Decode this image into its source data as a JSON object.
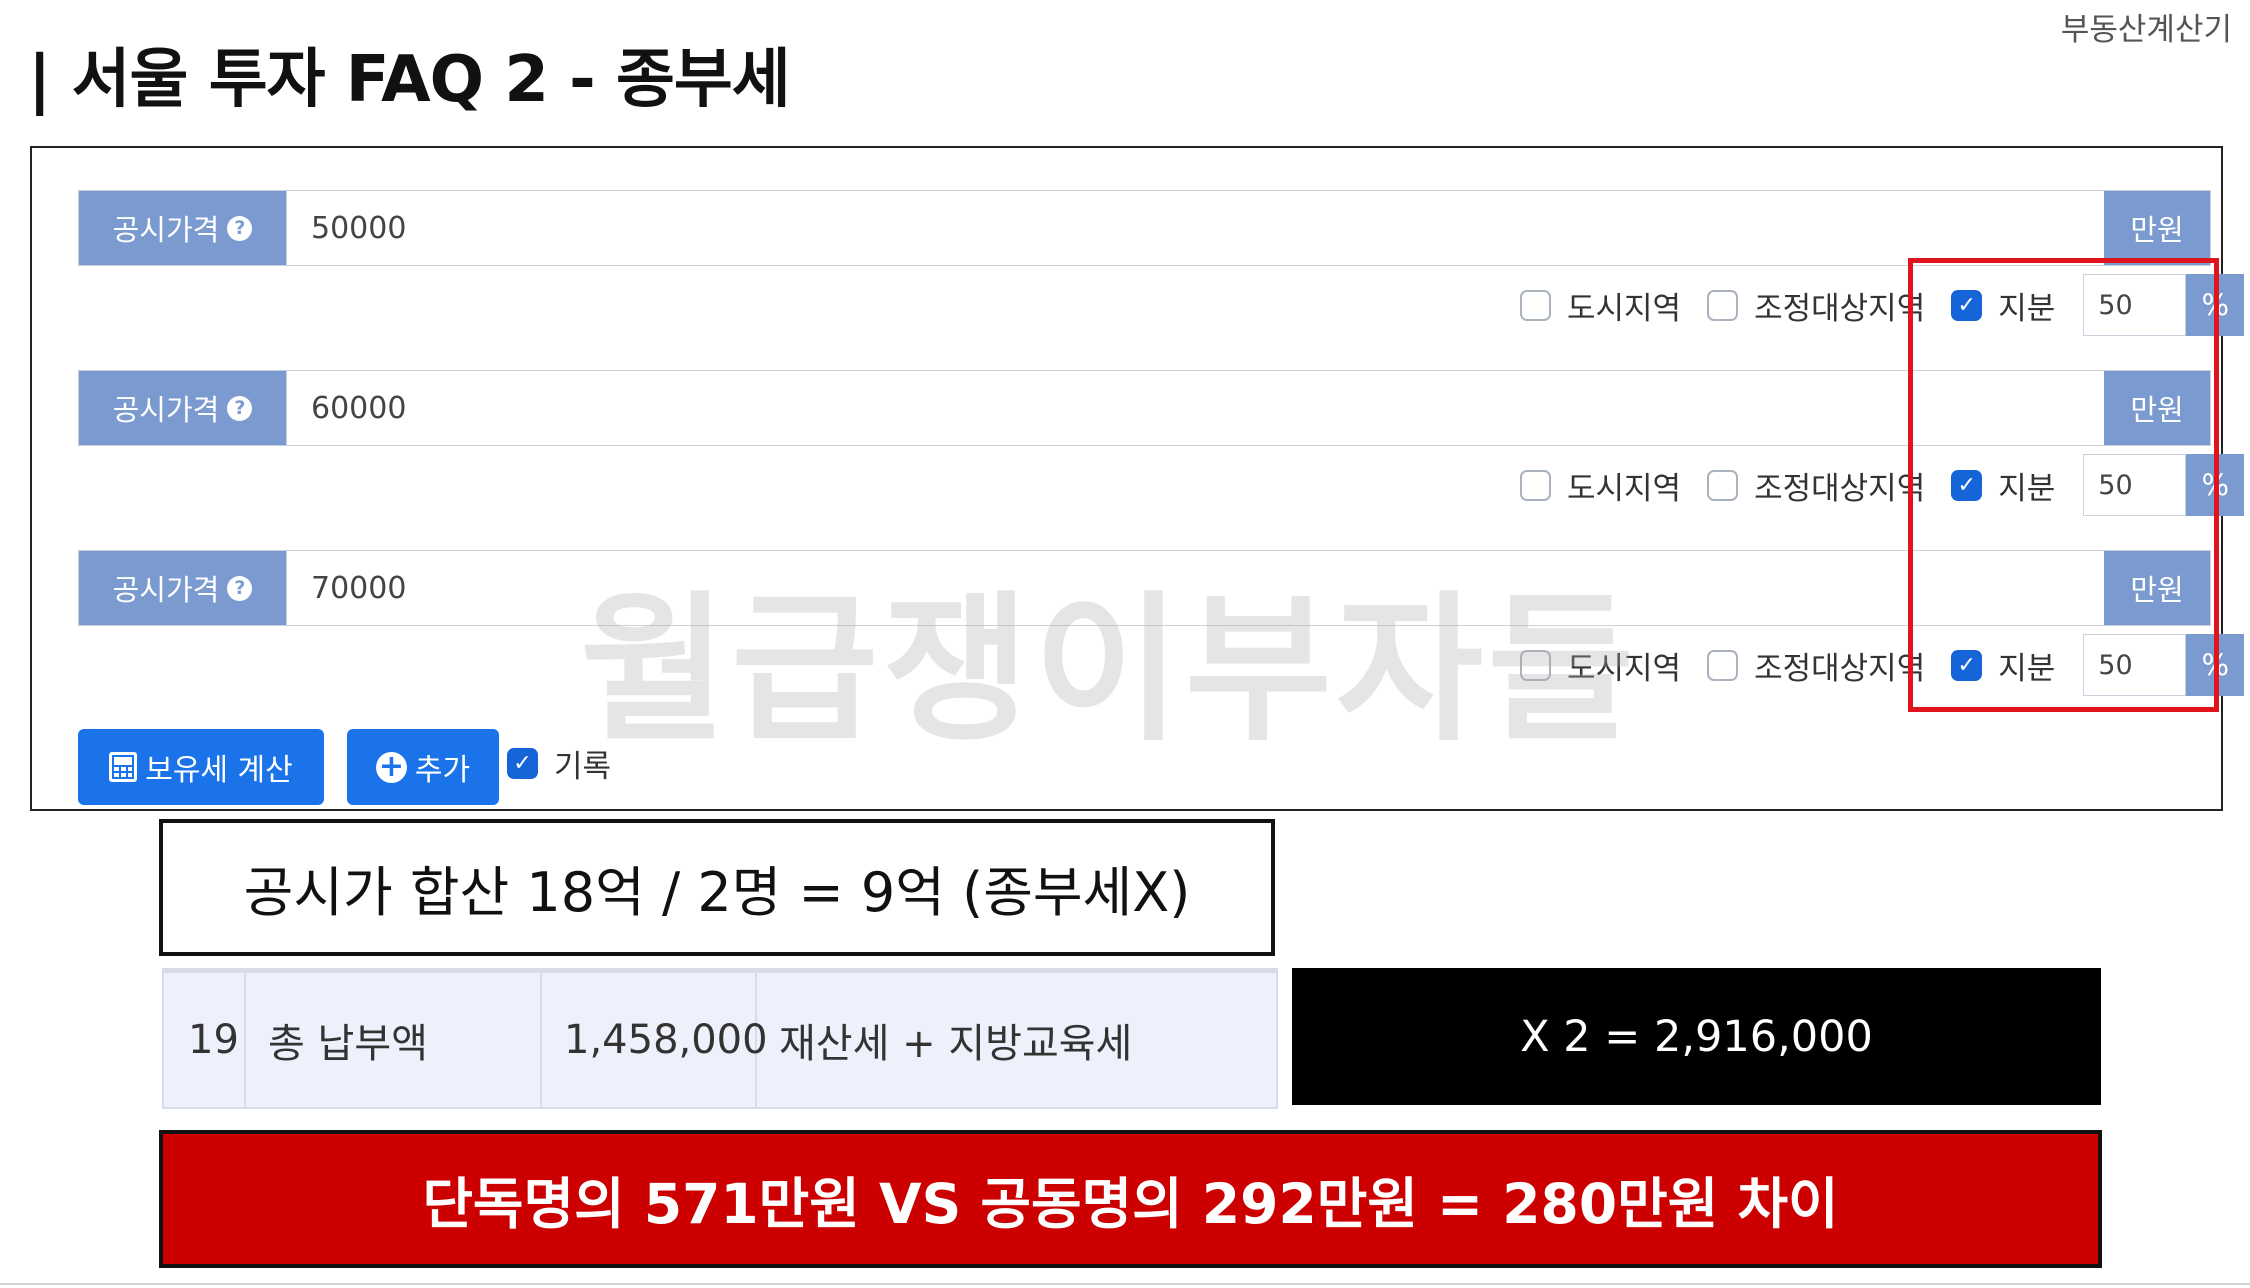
{
  "brand": "부동산계산기",
  "title": "| 서울 투자 FAQ 2 - 종부세",
  "price_label": "공시가격",
  "price_unit": "만원",
  "option_city": "도시지역",
  "option_adjusted": "조정대상지역",
  "option_share": "지분",
  "percent_unit": "%",
  "properties": [
    {
      "price": "50000",
      "share": "50",
      "city_checked": false,
      "adjusted_checked": false,
      "share_checked": true
    },
    {
      "price": "60000",
      "share": "50",
      "city_checked": false,
      "adjusted_checked": false,
      "share_checked": true
    },
    {
      "price": "70000",
      "share": "50",
      "city_checked": false,
      "adjusted_checked": false,
      "share_checked": true
    }
  ],
  "calc_button": "보유세 계산",
  "add_button": "추가",
  "record_label": "기록",
  "record_checked": true,
  "watermark": "월급쟁이부자들",
  "summary_text": "공시가 합산 18억 / 2명 = 9억 (종부세X)",
  "tax_row": {
    "no": "19",
    "label": "총 납부액",
    "amount": "1,458,000",
    "desc": "재산세 + 지방교육세"
  },
  "multiply_text": "X 2  = 2,916,000",
  "conclusion_text": "단독명의 571만원 VS 공동명의 292만원 = 280만원 차이",
  "colors": {
    "label_bg": "#7b9bd0",
    "button_blue": "#1a73e8",
    "checkbox_blue": "#1565d8",
    "highlight_red": "#e0141c",
    "banner_red": "#cc0000"
  }
}
